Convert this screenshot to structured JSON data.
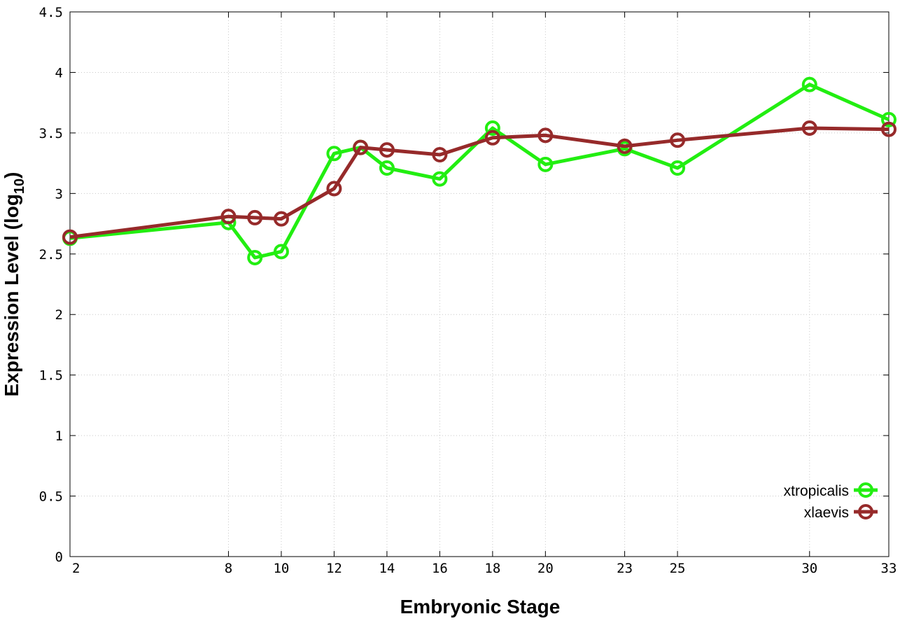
{
  "chart_data": {
    "type": "line",
    "xlabel": "Embryonic Stage",
    "ylabel": "Expression Level (log",
    "ylabel_sub": "10",
    "ylabel_end": ")",
    "ylim": [
      0,
      4.5
    ],
    "yticks": [
      0,
      0.5,
      1,
      1.5,
      2,
      2.5,
      3,
      3.5,
      4,
      4.5
    ],
    "ytick_labels": [
      "0",
      "0.5",
      "1",
      "1.5",
      "2",
      "2.5",
      "3",
      "3.5",
      "4",
      "4.5"
    ],
    "xticks": [
      2,
      8,
      10,
      12,
      14,
      16,
      18,
      20,
      23,
      25,
      30,
      33
    ],
    "xtick_labels": [
      "2",
      "8",
      "10",
      "12",
      "14",
      "16",
      "18",
      "20",
      "23",
      "25",
      "30",
      "33"
    ],
    "grid": true,
    "legend_position": "bottom-right",
    "series": [
      {
        "name": "xtropicalis",
        "color": "#22ee11",
        "x": [
          2,
          8,
          9,
          10,
          12,
          13,
          14,
          16,
          18,
          20,
          23,
          25,
          30,
          33
        ],
        "y": [
          2.63,
          2.76,
          2.47,
          2.52,
          3.33,
          3.38,
          3.21,
          3.12,
          3.54,
          3.24,
          3.37,
          3.21,
          3.9,
          3.61
        ]
      },
      {
        "name": "xlaevis",
        "color": "#962a2a",
        "x": [
          2,
          8,
          9,
          10,
          12,
          13,
          14,
          16,
          18,
          20,
          23,
          25,
          30,
          33
        ],
        "y": [
          2.64,
          2.81,
          2.8,
          2.79,
          3.04,
          3.38,
          3.36,
          3.32,
          3.46,
          3.48,
          3.39,
          3.44,
          3.54,
          3.53
        ]
      }
    ]
  }
}
